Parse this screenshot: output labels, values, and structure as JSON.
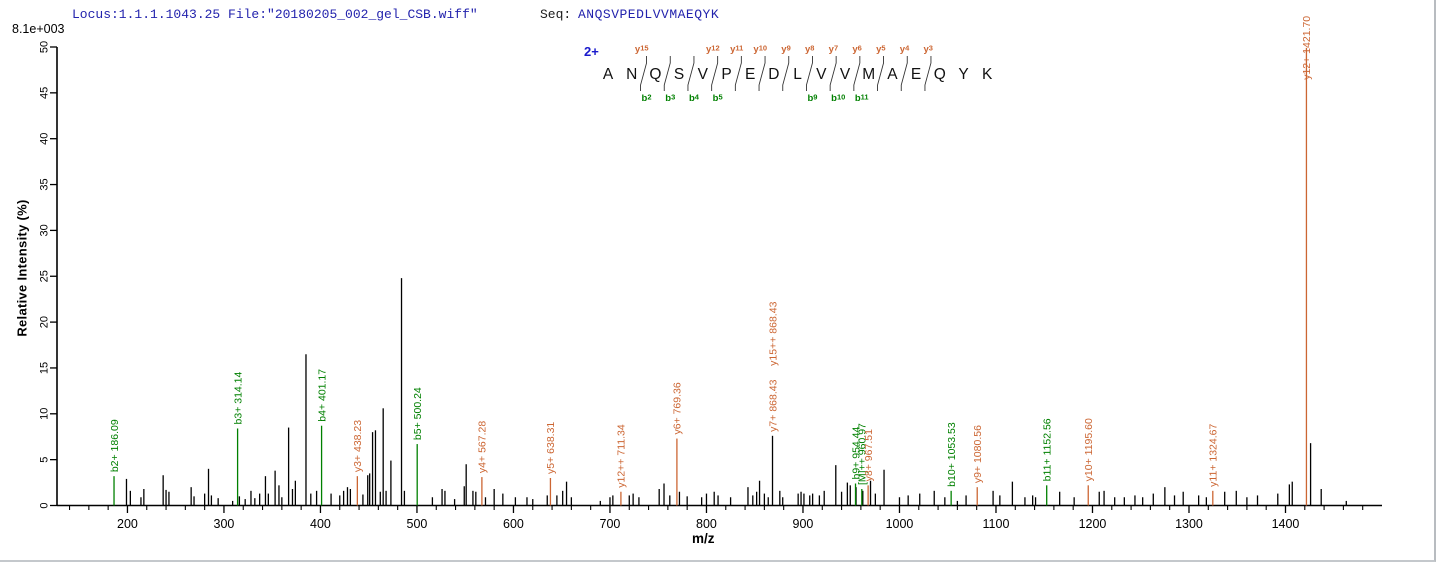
{
  "header": {
    "locus_file": "Locus:1.1.1.1043.25 File:\"20180205_002_gel_CSB.wiff\"",
    "seq_label": "Seq:",
    "seq_value": "ANQSVPEDLVVMAEQYK",
    "base_peak_intensity": "8.1e+003"
  },
  "axes": {
    "x": {
      "label": "m/z",
      "min": 127,
      "max": 1500,
      "major_ticks": [
        200,
        300,
        400,
        500,
        600,
        700,
        800,
        900,
        1000,
        1100,
        1200,
        1300,
        1400
      ],
      "minor_step": 20
    },
    "y": {
      "label": "Relative  Intensity (%)",
      "min": 0,
      "max": 50,
      "tick_step": 5
    }
  },
  "peptide_annotation": {
    "charge": "2+",
    "sequence": "ANQSVPEDLVVMAEQYK",
    "cleavages": [
      {
        "after": 2,
        "y": "y15",
        "b": "b2"
      },
      {
        "after": 3,
        "b": "b3"
      },
      {
        "after": 4,
        "b": "b4"
      },
      {
        "after": 5,
        "y": "y12",
        "b": "b5"
      },
      {
        "after": 6,
        "y": "y11"
      },
      {
        "after": 7,
        "y": "y10"
      },
      {
        "after": 8,
        "y": "y9"
      },
      {
        "after": 9,
        "y": "y8",
        "b": "b9"
      },
      {
        "after": 10,
        "y": "y7",
        "b": "b10"
      },
      {
        "after": 11,
        "y": "y6",
        "b": "b11"
      },
      {
        "after": 12,
        "y": "y5"
      },
      {
        "after": 13,
        "y": "y4"
      },
      {
        "after": 14,
        "y": "y3"
      }
    ]
  },
  "colors": {
    "y_series": "#cc6633",
    "b_series": "#008000",
    "precursor_series": "#008000",
    "peak": "#000000",
    "axis": "#000000",
    "header_blue": "#2323ad",
    "charge_blue": "#1a1acc"
  },
  "chart_data": {
    "type": "bar",
    "subtype": "ms2-fragment-spectrum",
    "title": "Locus:1.1.1.1043.25 File:\"20180205_002_gel_CSB.wiff\" Seq: ANQSVPEDLVVMAEQYK",
    "xlabel": "m/z",
    "ylabel": "Relative  Intensity (%)",
    "xlim": [
      127,
      1500
    ],
    "ylim": [
      0,
      50
    ],
    "base_peak_intensity": "8.1e+003",
    "precursor_charge": "2+",
    "peptide": "ANQSVPEDLVVMAEQYK",
    "annotated_peaks": [
      {
        "labels": [
          "b2+ 186.09"
        ],
        "mz": 186.09,
        "intensity_pct": 3.2,
        "series": "b"
      },
      {
        "labels": [
          "b3+ 314.14"
        ],
        "mz": 314.14,
        "intensity_pct": 8.4,
        "series": "b"
      },
      {
        "labels": [
          "b4+ 401.17"
        ],
        "mz": 401.17,
        "intensity_pct": 8.7,
        "series": "b"
      },
      {
        "labels": [
          "y3+ 438.23"
        ],
        "mz": 438.23,
        "intensity_pct": 3.2,
        "series": "y"
      },
      {
        "labels": [
          "b5+ 500.24"
        ],
        "mz": 500.24,
        "intensity_pct": 6.7,
        "series": "b"
      },
      {
        "labels": [
          "y4+ 567.28"
        ],
        "mz": 567.28,
        "intensity_pct": 3.1,
        "series": "y"
      },
      {
        "labels": [
          "y5+ 638.31"
        ],
        "mz": 638.31,
        "intensity_pct": 3.0,
        "series": "y"
      },
      {
        "labels": [
          "y12++ 711.34"
        ],
        "mz": 711.34,
        "intensity_pct": 1.5,
        "series": "y"
      },
      {
        "labels": [
          "y6+ 769.36"
        ],
        "mz": 769.36,
        "intensity_pct": 7.3,
        "series": "y"
      },
      {
        "labels": [
          "y7+ 868.43",
          "y15++ 868.43"
        ],
        "mz": 868.43,
        "intensity_pct": 7.6,
        "series": "y",
        "line": "black"
      },
      {
        "labels": [
          "b9+ 954.44"
        ],
        "mz": 954.44,
        "intensity_pct": 2.4,
        "series": "b"
      },
      {
        "labels": [
          "[M]++ 960.97"
        ],
        "mz": 960.97,
        "intensity_pct": 1.8,
        "series": "precursor"
      },
      {
        "labels": [
          "y8+ 967.51"
        ],
        "mz": 967.51,
        "intensity_pct": 2.2,
        "series": "y"
      },
      {
        "labels": [
          "b10+ 1053.53"
        ],
        "mz": 1053.53,
        "intensity_pct": 1.6,
        "series": "b"
      },
      {
        "labels": [
          "y9+ 1080.56"
        ],
        "mz": 1080.56,
        "intensity_pct": 2.0,
        "series": "y"
      },
      {
        "labels": [
          "b11+ 1152.56"
        ],
        "mz": 1152.56,
        "intensity_pct": 2.2,
        "series": "b"
      },
      {
        "labels": [
          "y10+ 1195.60"
        ],
        "mz": 1195.6,
        "intensity_pct": 2.2,
        "series": "y"
      },
      {
        "labels": [
          "y11+ 1324.67"
        ],
        "mz": 1324.67,
        "intensity_pct": 1.6,
        "series": "y"
      },
      {
        "labels": [
          "y12+ 1421.70"
        ],
        "mz": 1421.7,
        "intensity_pct": 49.9,
        "series": "y"
      }
    ],
    "unannotated_peaks": [
      [
        199,
        2.9
      ],
      [
        203,
        1.6
      ],
      [
        214,
        0.9
      ],
      [
        217,
        1.8
      ],
      [
        237,
        3.3
      ],
      [
        240,
        1.7
      ],
      [
        243,
        1.5
      ],
      [
        266,
        2.0
      ],
      [
        269,
        1.0
      ],
      [
        280,
        1.3
      ],
      [
        284,
        4.0
      ],
      [
        287,
        1.1
      ],
      [
        294,
        0.8
      ],
      [
        309,
        0.5
      ],
      [
        316,
        1.0
      ],
      [
        322,
        0.7
      ],
      [
        328,
        1.6
      ],
      [
        332,
        0.8
      ],
      [
        337,
        1.3
      ],
      [
        343,
        3.2
      ],
      [
        346,
        1.3
      ],
      [
        353,
        3.8
      ],
      [
        357,
        2.2
      ],
      [
        360,
        0.9
      ],
      [
        367,
        8.5
      ],
      [
        371,
        1.8
      ],
      [
        374,
        2.7
      ],
      [
        385,
        16.5
      ],
      [
        390,
        1.3
      ],
      [
        396,
        1.6
      ],
      [
        411,
        1.3
      ],
      [
        420,
        1.1
      ],
      [
        424,
        1.6
      ],
      [
        428,
        2.0
      ],
      [
        431,
        1.8
      ],
      [
        444,
        1.2
      ],
      [
        449,
        3.3
      ],
      [
        451,
        3.5
      ],
      [
        454,
        8.0
      ],
      [
        457,
        8.2
      ],
      [
        462,
        1.5
      ],
      [
        465,
        10.6
      ],
      [
        468,
        1.6
      ],
      [
        473,
        4.9
      ],
      [
        484,
        24.8
      ],
      [
        487,
        1.6
      ],
      [
        516,
        0.9
      ],
      [
        526,
        1.8
      ],
      [
        529,
        1.6
      ],
      [
        539,
        0.7
      ],
      [
        549,
        2.1
      ],
      [
        551,
        4.5
      ],
      [
        558,
        1.6
      ],
      [
        561,
        1.5
      ],
      [
        571,
        0.9
      ],
      [
        580,
        1.8
      ],
      [
        589,
        1.3
      ],
      [
        602,
        0.9
      ],
      [
        614,
        0.9
      ],
      [
        620,
        0.7
      ],
      [
        635,
        1.1
      ],
      [
        645,
        1.1
      ],
      [
        651,
        1.6
      ],
      [
        655,
        2.6
      ],
      [
        660,
        0.9
      ],
      [
        690,
        0.5
      ],
      [
        700,
        0.9
      ],
      [
        703,
        1.1
      ],
      [
        720,
        1.1
      ],
      [
        724,
        1.3
      ],
      [
        730,
        0.9
      ],
      [
        751,
        1.8
      ],
      [
        756,
        2.4
      ],
      [
        762,
        1.1
      ],
      [
        772,
        1.5
      ],
      [
        780,
        1.0
      ],
      [
        795,
        0.9
      ],
      [
        800,
        1.3
      ],
      [
        808,
        1.5
      ],
      [
        812,
        1.1
      ],
      [
        825,
        0.9
      ],
      [
        843,
        2.0
      ],
      [
        848,
        1.1
      ],
      [
        852,
        1.5
      ],
      [
        855,
        2.7
      ],
      [
        860,
        1.3
      ],
      [
        864,
        0.9
      ],
      [
        876,
        1.6
      ],
      [
        879,
        0.9
      ],
      [
        895,
        1.3
      ],
      [
        898,
        1.5
      ],
      [
        901,
        1.3
      ],
      [
        907,
        1.1
      ],
      [
        910,
        1.3
      ],
      [
        917,
        1.1
      ],
      [
        922,
        1.6
      ],
      [
        934,
        4.4
      ],
      [
        940,
        1.5
      ],
      [
        946,
        2.5
      ],
      [
        949,
        2.2
      ],
      [
        955,
        2.0
      ],
      [
        962,
        1.6
      ],
      [
        970,
        2.7
      ],
      [
        975,
        1.3
      ],
      [
        984,
        3.9
      ],
      [
        1000,
        0.9
      ],
      [
        1009,
        1.1
      ],
      [
        1021,
        1.3
      ],
      [
        1036,
        1.6
      ],
      [
        1047,
        0.9
      ],
      [
        1060,
        0.5
      ],
      [
        1069,
        1.1
      ],
      [
        1097,
        1.6
      ],
      [
        1104,
        1.1
      ],
      [
        1117,
        2.6
      ],
      [
        1130,
        0.9
      ],
      [
        1138,
        1.1
      ],
      [
        1141,
        0.9
      ],
      [
        1166,
        1.5
      ],
      [
        1181,
        0.9
      ],
      [
        1207,
        1.5
      ],
      [
        1212,
        1.6
      ],
      [
        1223,
        0.9
      ],
      [
        1233,
        0.9
      ],
      [
        1244,
        1.1
      ],
      [
        1252,
        0.9
      ],
      [
        1263,
        1.3
      ],
      [
        1275,
        2.0
      ],
      [
        1285,
        1.1
      ],
      [
        1294,
        1.5
      ],
      [
        1310,
        1.1
      ],
      [
        1318,
        0.9
      ],
      [
        1337,
        1.5
      ],
      [
        1349,
        1.6
      ],
      [
        1360,
        0.9
      ],
      [
        1371,
        1.1
      ],
      [
        1392,
        1.3
      ],
      [
        1404,
        2.3
      ],
      [
        1407,
        2.6
      ],
      [
        1426,
        6.8
      ],
      [
        1437,
        1.8
      ],
      [
        1463,
        0.5
      ]
    ]
  }
}
